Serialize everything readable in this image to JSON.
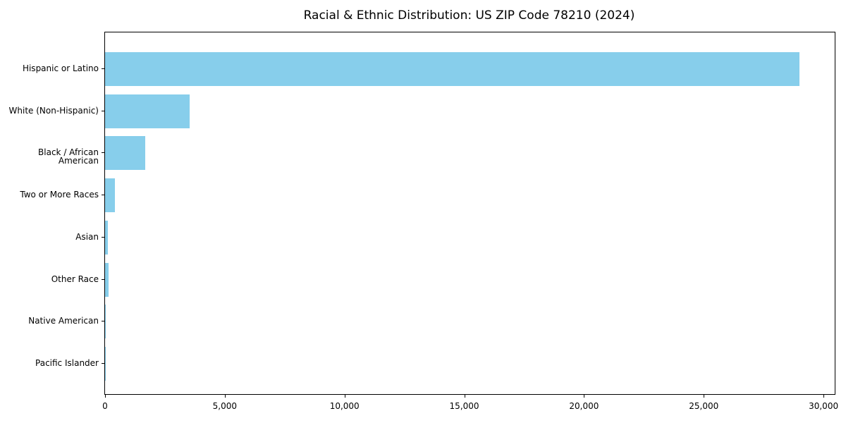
{
  "title": "Racial & Ethnic Distribution: US ZIP Code 78210 (2024)",
  "chart_data": {
    "type": "bar",
    "orientation": "horizontal",
    "title": "Racial & Ethnic Distribution: US ZIP Code 78210 (2024)",
    "categories": [
      "Hispanic or Latino",
      "White (Non-Hispanic)",
      "Black / African American",
      "Two or More Races",
      "Asian",
      "Other Race",
      "Native American",
      "Pacific Islander"
    ],
    "values": [
      29000,
      3530,
      1680,
      400,
      120,
      135,
      30,
      10
    ],
    "bar_color": "#87CEEB",
    "xlabel": "",
    "ylabel": "",
    "xlim": [
      0,
      30468
    ],
    "x_ticks": [
      0,
      5000,
      10000,
      15000,
      20000,
      25000,
      30000
    ],
    "x_tick_labels": [
      "0",
      "5,000",
      "10,000",
      "15,000",
      "20,000",
      "25,000",
      "30,000"
    ],
    "grid": false,
    "legend": null,
    "background_color": "#ffffff",
    "spine_color": "#000000",
    "text_color": "#000000"
  }
}
